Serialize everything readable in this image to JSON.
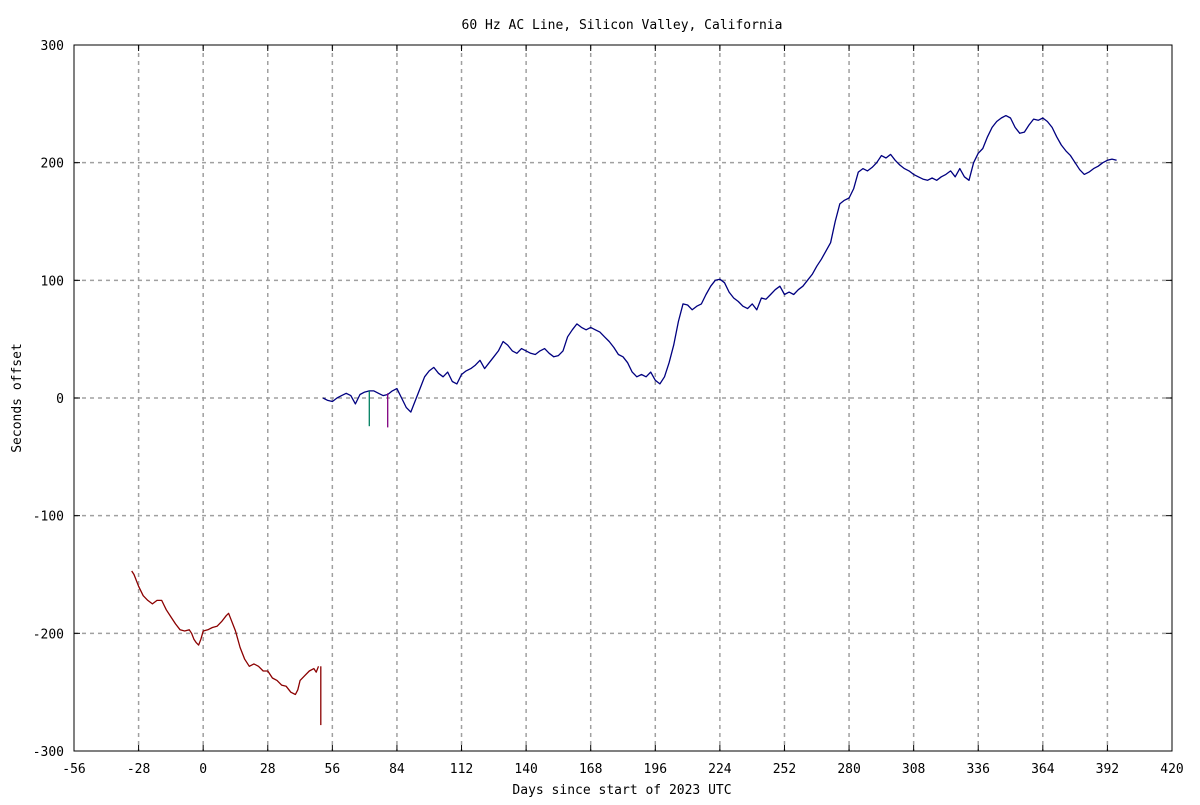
{
  "chart_data": {
    "type": "line",
    "title": "60 Hz AC Line, Silicon Valley, California",
    "xlabel": "Days since start of 2023 UTC",
    "ylabel": "Seconds offset",
    "xlim": [
      -56,
      420
    ],
    "ylim": [
      -300,
      300
    ],
    "x_ticks": [
      -56,
      -28,
      0,
      28,
      56,
      84,
      112,
      140,
      168,
      196,
      224,
      252,
      280,
      308,
      336,
      364,
      392,
      420
    ],
    "x_tick_labels": [
      "-56",
      "-28",
      "0",
      "28",
      "56",
      "84",
      "112",
      "140",
      "168",
      "196",
      "224",
      "252",
      "280",
      "308",
      "336",
      "364",
      "392",
      "420"
    ],
    "y_ticks": [
      -300,
      -200,
      -100,
      0,
      100,
      200,
      300
    ],
    "y_tick_labels": [
      "-300",
      "-200",
      "-100",
      "0",
      "100",
      "200",
      "300"
    ],
    "grid": true,
    "series": [
      {
        "color": "#8b0000",
        "x": [
          -31,
          -30,
          -28,
          -26,
          -24,
          -22,
          -20,
          -18,
          -17,
          -16,
          -14,
          -12,
          -10,
          -8,
          -6,
          -5,
          -4,
          -3,
          -2,
          -1,
          0,
          2,
          4,
          6,
          8,
          10,
          11,
          12,
          14,
          16,
          18,
          20,
          22,
          24,
          26,
          28,
          30,
          32,
          34,
          36,
          38,
          40,
          41,
          42,
          44,
          46,
          48,
          49,
          50
        ],
        "y": [
          -147,
          -150,
          -160,
          -168,
          -172,
          -175,
          -172,
          -172,
          -176,
          -180,
          -186,
          -192,
          -197,
          -198,
          -197,
          -200,
          -205,
          -208,
          -210,
          -205,
          -198,
          -197,
          -195,
          -194,
          -190,
          -185,
          -183,
          -188,
          -198,
          -212,
          -222,
          -228,
          -226,
          -228,
          -232,
          -232,
          -238,
          -240,
          -244,
          -245,
          -250,
          -252,
          -248,
          -240,
          -236,
          -232,
          -230,
          -233,
          -228
        ]
      },
      {
        "color": "#8b0000",
        "x": [
          51,
          51
        ],
        "y": [
          -228,
          -278
        ]
      },
      {
        "color": "#000080",
        "x": [
          52,
          54,
          56,
          58,
          60,
          62,
          64,
          66,
          68,
          70,
          72,
          74,
          76,
          78,
          80,
          82,
          84,
          86,
          88,
          90,
          92,
          94,
          96,
          98,
          100,
          102,
          104,
          106,
          108,
          110,
          112,
          114,
          116,
          118,
          120,
          122,
          124,
          126,
          128,
          130,
          132,
          134,
          136,
          138,
          140,
          142,
          144,
          146,
          148,
          150,
          152,
          154,
          156,
          158,
          160,
          162,
          164,
          166,
          168,
          170,
          172,
          174,
          176,
          178,
          180,
          182,
          184,
          186,
          188,
          190,
          192,
          194,
          196,
          198,
          200,
          202,
          204,
          206,
          208,
          210,
          212,
          214,
          216,
          218,
          220,
          222,
          224,
          226,
          228,
          230,
          232,
          234,
          236,
          238,
          240,
          242,
          244,
          246,
          248,
          250,
          252,
          254,
          256,
          258,
          260,
          262,
          264,
          266,
          268,
          270,
          272,
          274,
          276,
          278,
          280,
          282,
          284,
          286,
          288,
          290,
          292,
          294,
          296,
          298,
          300,
          302,
          304,
          306,
          308,
          310,
          312,
          314,
          316,
          318,
          320,
          322,
          324,
          326,
          328,
          330,
          332,
          334,
          336,
          338,
          340,
          342,
          344,
          346,
          348,
          350,
          352,
          354,
          356,
          358,
          360,
          362,
          364,
          366,
          368,
          370,
          372,
          374,
          376,
          378,
          380,
          382,
          384,
          386,
          388,
          390,
          392,
          394,
          396
        ],
        "y": [
          0,
          -2,
          -3,
          0,
          2,
          4,
          2,
          -5,
          3,
          5,
          6,
          6,
          4,
          2,
          3,
          6,
          8,
          0,
          -8,
          -12,
          -2,
          8,
          18,
          23,
          26,
          21,
          18,
          22,
          14,
          12,
          20,
          23,
          25,
          28,
          32,
          25,
          30,
          35,
          40,
          48,
          45,
          40,
          38,
          42,
          40,
          38,
          37,
          40,
          42,
          38,
          35,
          36,
          40,
          52,
          58,
          63,
          60,
          58,
          60,
          58,
          56,
          52,
          48,
          43,
          37,
          35,
          30,
          22,
          18,
          20,
          18,
          22,
          15,
          12,
          18,
          30,
          45,
          65,
          80,
          79,
          75,
          78,
          80,
          88,
          95,
          100,
          101,
          98,
          90,
          85,
          82,
          78,
          76,
          80,
          75,
          85,
          84,
          88,
          92,
          95,
          88,
          90,
          88,
          92,
          95,
          100,
          105,
          112,
          118,
          125,
          132,
          150,
          165,
          168,
          170,
          178,
          192,
          195,
          193,
          196,
          200,
          206,
          204,
          207,
          202,
          198,
          195,
          193,
          190,
          188,
          186,
          185,
          187,
          185,
          188,
          190,
          193,
          188,
          195,
          188,
          185,
          200,
          208,
          212,
          222,
          230,
          235,
          238,
          240,
          238,
          230,
          225,
          226,
          232,
          237,
          236,
          238,
          235,
          230,
          222,
          215,
          210,
          206,
          200,
          194,
          190,
          192,
          195,
          197,
          200,
          202,
          203,
          202
        ]
      },
      {
        "color": "#008060",
        "x": [
          72,
          72
        ],
        "y": [
          6,
          -24
        ]
      },
      {
        "color": "#800080",
        "x": [
          80,
          80
        ],
        "y": [
          4,
          -25
        ]
      }
    ]
  }
}
